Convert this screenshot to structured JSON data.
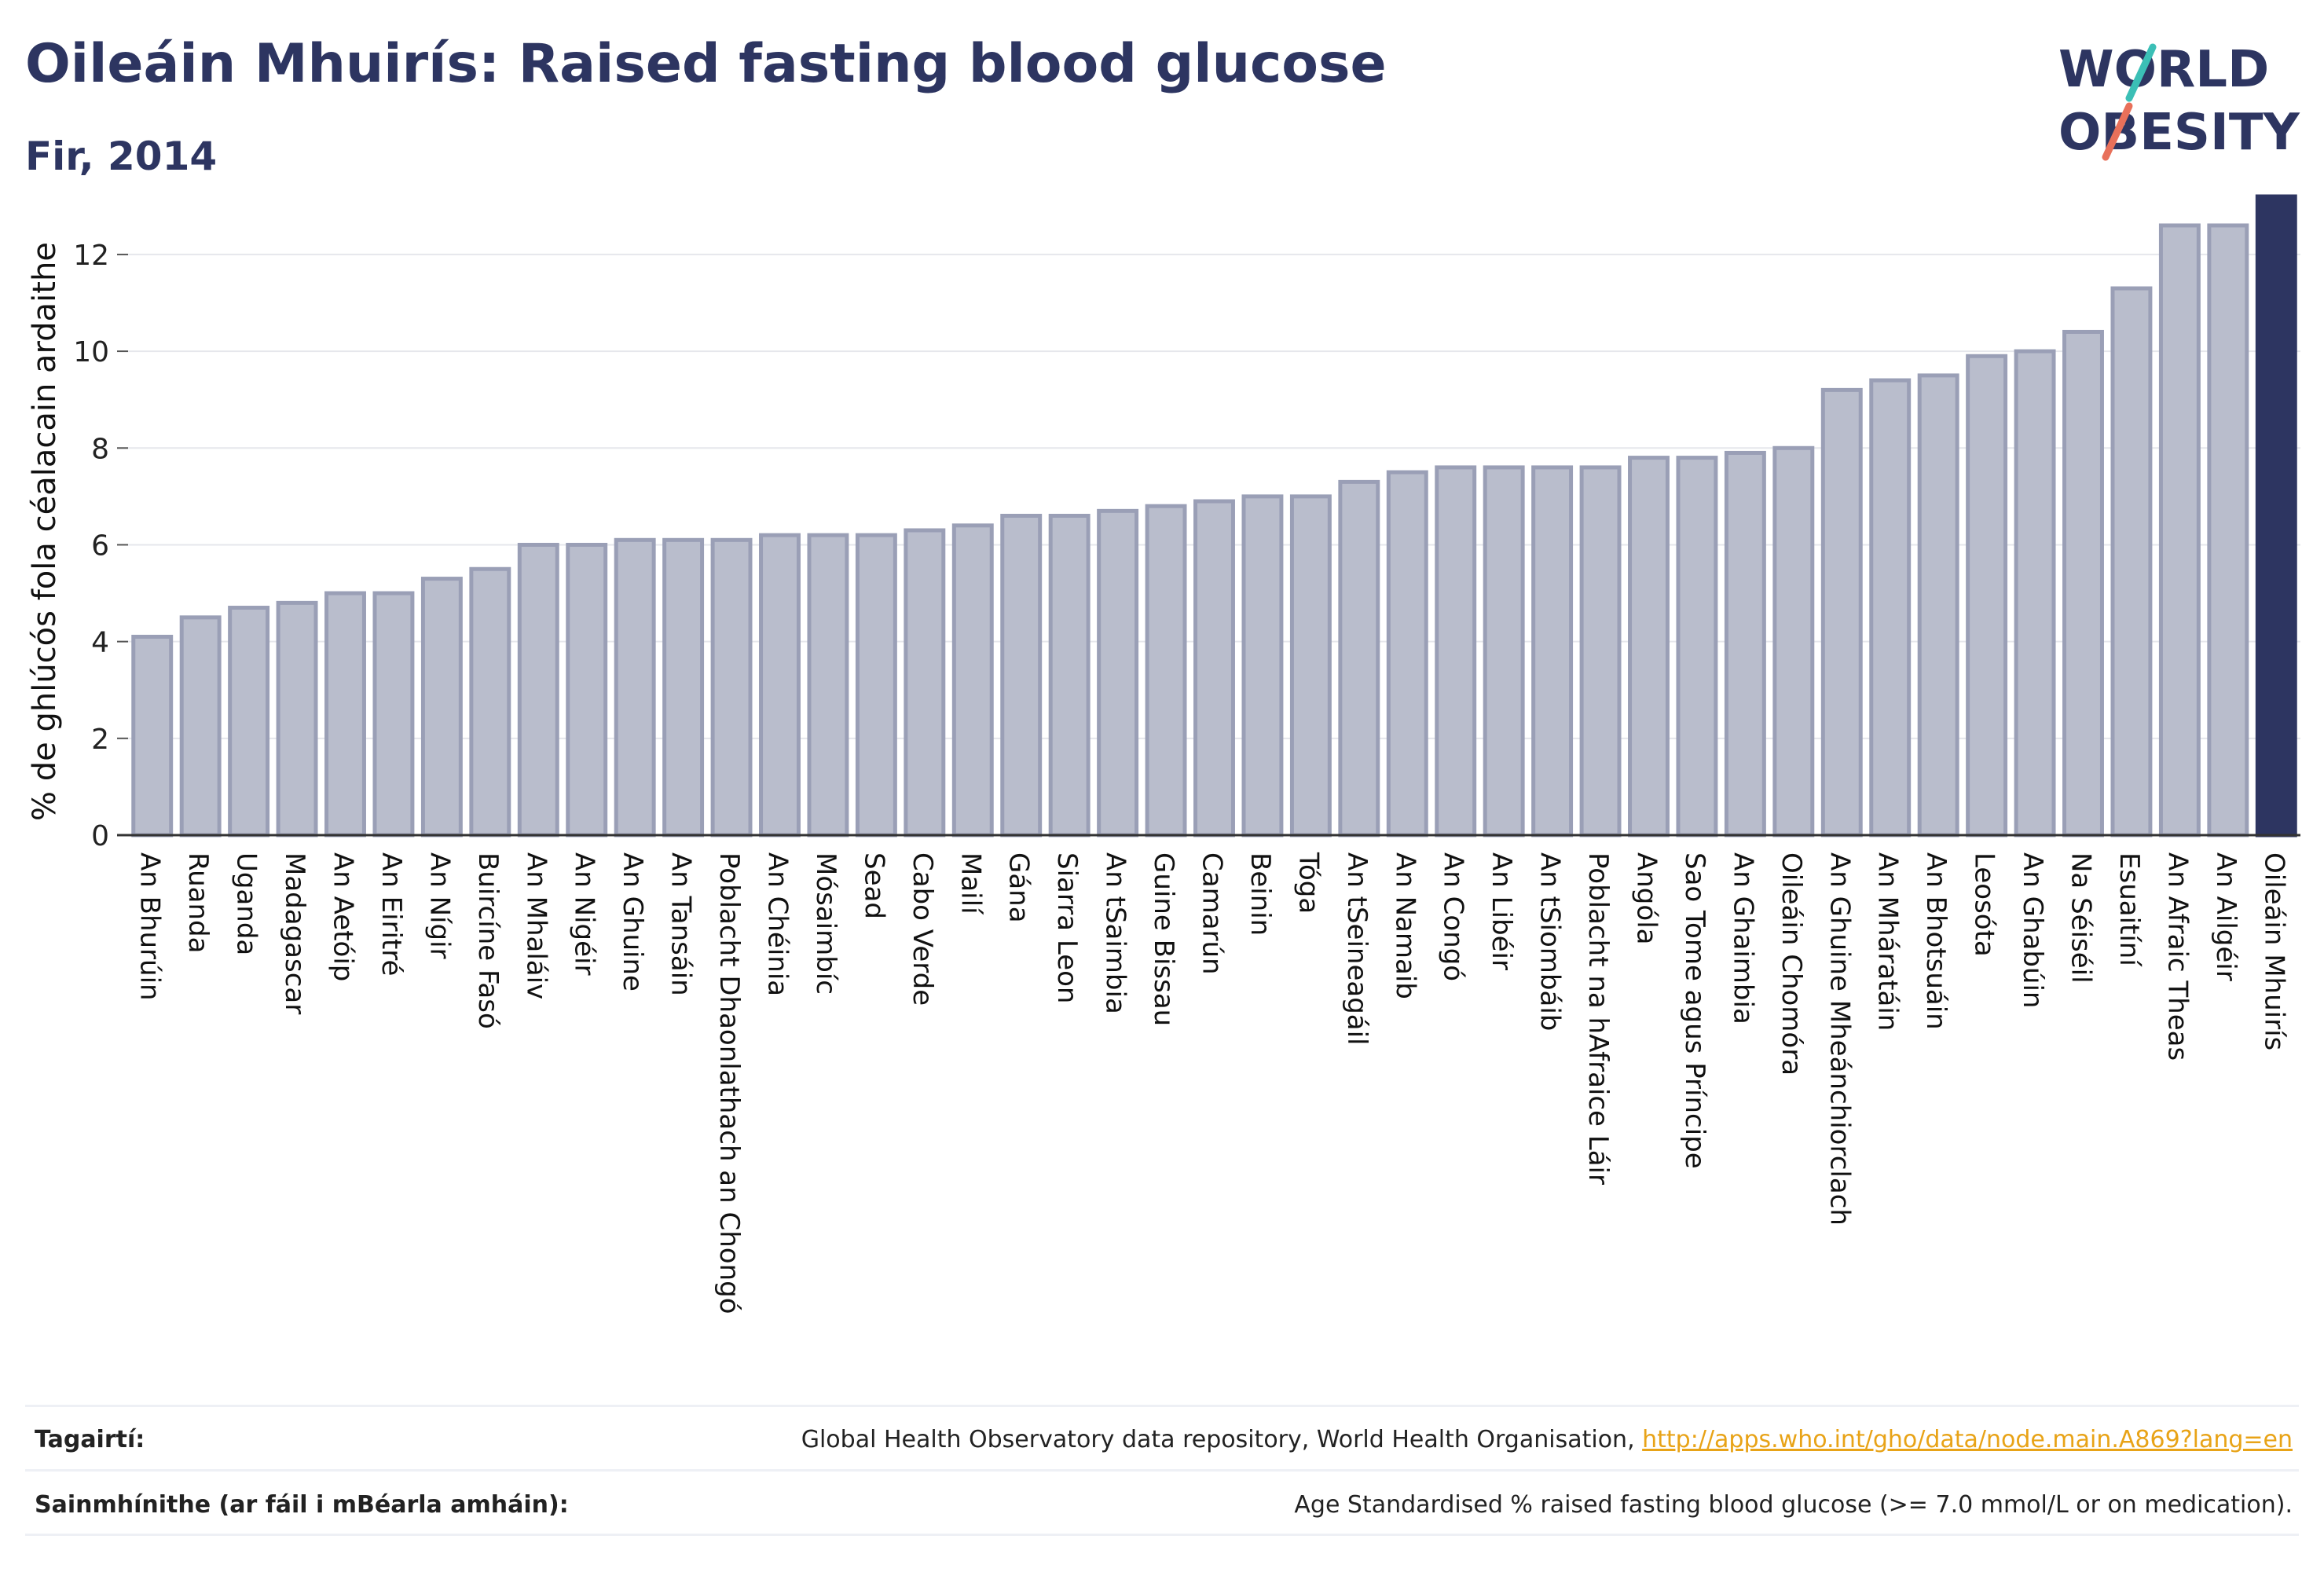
{
  "header": {
    "title": "Oileáin Mhuirís: Raised fasting blood glucose",
    "subtitle": "Fir, 2014"
  },
  "logo": {
    "line1": "WORLD",
    "line2": "OBESITY",
    "accent_colors": [
      "#3bbfb6",
      "#e8705a"
    ]
  },
  "colors": {
    "bar": "#b9bdcc",
    "bar_stroke": "#9a9fb6",
    "highlight": "#2d3561",
    "text": "#2d3561",
    "link": "#e8a317"
  },
  "chart_data": {
    "type": "bar",
    "ylabel": "% de ghlúcós fola céalacain ardaithe",
    "ylim": [
      0,
      13.2
    ],
    "yticks": [
      0,
      2,
      4,
      6,
      8,
      10,
      12
    ],
    "grid": true,
    "highlight": "Oileáin Mhuirís",
    "categories": [
      "An Bhurúin",
      "Ruanda",
      "Uganda",
      "Madagascar",
      "An Aetóip",
      "An Eiritré",
      "An Nígir",
      "Buircíne Fasó",
      "An Mhaláiv",
      "An Nigéir",
      "An Ghuine",
      "An Tansáin",
      "Poblacht Dhaonlathach an Chongó",
      "An Chéinia",
      "Mósaimbíc",
      "Sead",
      "Cabo Verde",
      "Mailí",
      "Gána",
      "Siarra Leon",
      "An tSaimbia",
      "Guine Bissau",
      "Camarún",
      "Beinin",
      "Tóga",
      "An tSeineagáil",
      "An Namaib",
      "An Congó",
      "An Libéir",
      "An tSiombáib",
      "Poblacht na hAfraice Láir",
      "Angóla",
      "Sao Tome agus Príncipe",
      "An Ghaimbia",
      "Oileáin Chomóra",
      "An Ghuine Mheánchiorclach",
      "An Mháratáin",
      "An Bhotsuáin",
      "Leosóta",
      "An Ghabúin",
      "Na Séiséil",
      "Esuaitíní",
      "An Afraic Theas",
      "An Ailgéir",
      "Oileáin Mhuirís"
    ],
    "values": [
      4.1,
      4.5,
      4.7,
      4.8,
      5.0,
      5.0,
      5.3,
      5.5,
      6.0,
      6.0,
      6.1,
      6.1,
      6.1,
      6.2,
      6.2,
      6.2,
      6.3,
      6.4,
      6.6,
      6.6,
      6.7,
      6.8,
      6.9,
      7.0,
      7.0,
      7.3,
      7.5,
      7.6,
      7.6,
      7.6,
      7.6,
      7.8,
      7.8,
      7.9,
      8.0,
      9.2,
      9.4,
      9.5,
      9.9,
      10.0,
      10.4,
      11.3,
      12.6,
      12.6,
      13.2
    ]
  },
  "footer": {
    "references_label": "Tagairtí:",
    "references_text": "Global Health Observatory data repository, World Health Organisation, ",
    "references_link": "http://apps.who.int/gho/data/node.main.A869?lang=en",
    "definitions_label": "Sainmhínithe (ar fáil i mBéarla amháin):",
    "definitions_text": "Age Standardised % raised fasting blood glucose (>= 7.0 mmol/L or on medication)."
  }
}
